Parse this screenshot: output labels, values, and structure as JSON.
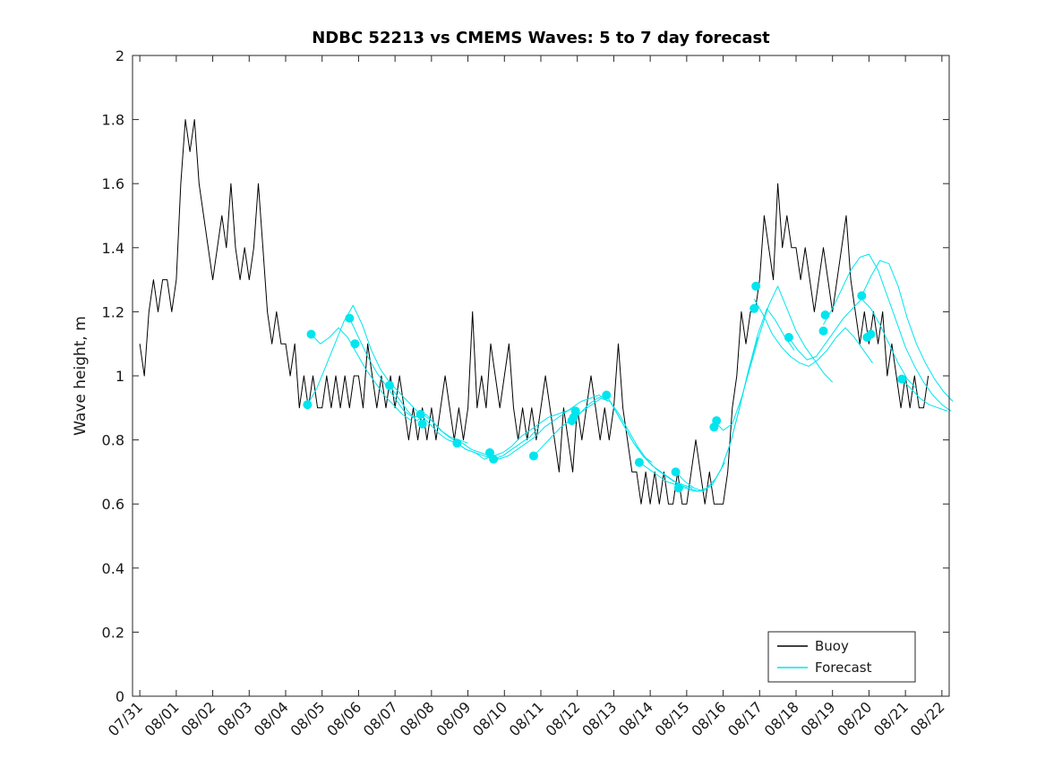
{
  "chart_data": {
    "type": "line",
    "title": "NDBC 52213 vs CMEMS Waves: 5 to 7 day forecast",
    "xlabel": "",
    "ylabel": "Wave height, m",
    "grid": false,
    "x_unit": "days since 07/31",
    "xlim_days": [
      -0.2,
      22.2
    ],
    "ylim": [
      0,
      2
    ],
    "x_axis": {
      "tick_days": [
        0,
        1,
        2,
        3,
        4,
        5,
        6,
        7,
        8,
        9,
        10,
        11,
        12,
        13,
        14,
        15,
        16,
        17,
        18,
        19,
        20,
        21,
        22
      ],
      "tick_labels": [
        "07/31",
        "08/01",
        "08/02",
        "08/03",
        "08/04",
        "08/05",
        "08/06",
        "08/07",
        "08/08",
        "08/09",
        "08/10",
        "08/11",
        "08/12",
        "08/13",
        "08/14",
        "08/15",
        "08/16",
        "08/17",
        "08/18",
        "08/19",
        "08/20",
        "08/21",
        "08/22"
      ],
      "tick_angle_deg": 45
    },
    "y_axis": {
      "tick_values": [
        0,
        0.2,
        0.4,
        0.6,
        0.8,
        1,
        1.2,
        1.4,
        1.6,
        1.8,
        2
      ],
      "tick_labels": [
        "0",
        "0.2",
        "0.4",
        "0.6",
        "0.8",
        "1",
        "1.2",
        "1.4",
        "1.6",
        "1.8",
        "2"
      ]
    },
    "legend": {
      "position": "lower right",
      "entries": [
        {
          "label": "Buoy",
          "color": "#000000"
        },
        {
          "label": "Forecast",
          "color": "#00E5EE"
        }
      ]
    },
    "series": [
      {
        "name": "Buoy",
        "color": "#000000",
        "style": "solid",
        "x_start": 0,
        "x_step": 0.125,
        "values": [
          1.1,
          1.0,
          1.2,
          1.3,
          1.2,
          1.3,
          1.3,
          1.2,
          1.3,
          1.6,
          1.8,
          1.7,
          1.8,
          1.6,
          1.5,
          1.4,
          1.3,
          1.4,
          1.5,
          1.4,
          1.6,
          1.4,
          1.3,
          1.4,
          1.3,
          1.4,
          1.6,
          1.4,
          1.2,
          1.1,
          1.2,
          1.1,
          1.1,
          1.0,
          1.1,
          0.9,
          1.0,
          0.9,
          1.0,
          0.9,
          0.9,
          1.0,
          0.9,
          1.0,
          0.9,
          1.0,
          0.9,
          1.0,
          1.0,
          0.9,
          1.1,
          1.0,
          0.9,
          1.0,
          0.9,
          1.0,
          0.9,
          1.0,
          0.9,
          0.8,
          0.9,
          0.8,
          0.9,
          0.8,
          0.9,
          0.8,
          0.9,
          1.0,
          0.9,
          0.8,
          0.9,
          0.8,
          0.9,
          1.2,
          0.9,
          1.0,
          0.9,
          1.1,
          1.0,
          0.9,
          1.0,
          1.1,
          0.9,
          0.8,
          0.9,
          0.8,
          0.9,
          0.8,
          0.9,
          1.0,
          0.9,
          0.8,
          0.7,
          0.9,
          0.8,
          0.7,
          0.9,
          0.8,
          0.9,
          1.0,
          0.9,
          0.8,
          0.9,
          0.8,
          0.9,
          1.1,
          0.9,
          0.8,
          0.7,
          0.7,
          0.6,
          0.7,
          0.6,
          0.7,
          0.6,
          0.7,
          0.6,
          0.6,
          0.7,
          0.6,
          0.6,
          0.7,
          0.8,
          0.7,
          0.6,
          0.7,
          0.6,
          0.6,
          0.6,
          0.7,
          0.9,
          1.0,
          1.2,
          1.1,
          1.2,
          1.2,
          1.3,
          1.5,
          1.4,
          1.3,
          1.6,
          1.4,
          1.5,
          1.4,
          1.4,
          1.3,
          1.4,
          1.3,
          1.2,
          1.3,
          1.4,
          1.3,
          1.2,
          1.3,
          1.4,
          1.5,
          1.3,
          1.2,
          1.1,
          1.2,
          1.1,
          1.2,
          1.1,
          1.2,
          1.0,
          1.1,
          1.0,
          0.9,
          1.0,
          0.9,
          1.0,
          0.9,
          0.9,
          1.0
        ]
      },
      {
        "name": "Forecast",
        "color": "#00E5EE",
        "style": "solid",
        "segments": [
          {
            "x_start": 4.6,
            "x_step": 0.25,
            "values": [
              0.91,
              0.96,
              1.03,
              1.1,
              1.17,
              1.22,
              1.16,
              1.08,
              1.02,
              0.98,
              0.95,
              0.92,
              0.89
            ]
          },
          {
            "x_start": 4.7,
            "x_step": 0.25,
            "values": [
              1.13,
              1.1,
              1.12,
              1.15,
              1.12,
              1.07,
              1.02,
              0.98,
              0.94,
              0.91,
              0.88,
              0.86
            ]
          },
          {
            "x_start": 5.75,
            "x_step": 0.25,
            "values": [
              1.18,
              1.12,
              1.06,
              1.01,
              0.97,
              0.93,
              0.89,
              0.87,
              0.88,
              0.86,
              0.83,
              0.81,
              0.8,
              0.79
            ]
          },
          {
            "x_start": 6.85,
            "x_step": 0.25,
            "values": [
              0.97,
              0.93,
              0.89,
              0.86,
              0.88,
              0.85,
              0.82,
              0.8,
              0.79,
              0.77,
              0.76,
              0.75,
              0.74
            ]
          },
          {
            "x_start": 7.7,
            "x_step": 0.25,
            "values": [
              0.88,
              0.85,
              0.82,
              0.8,
              0.79,
              0.77,
              0.76,
              0.75,
              0.74,
              0.75,
              0.77,
              0.79,
              0.81,
              0.84
            ]
          },
          {
            "x_start": 8.7,
            "x_step": 0.25,
            "values": [
              0.79,
              0.77,
              0.76,
              0.74,
              0.75,
              0.76,
              0.78,
              0.81,
              0.83,
              0.85,
              0.87,
              0.88,
              0.89,
              0.9
            ]
          },
          {
            "x_start": 9.6,
            "x_step": 0.25,
            "values": [
              0.76,
              0.74,
              0.75,
              0.77,
              0.79,
              0.81,
              0.84,
              0.86,
              0.88,
              0.9,
              0.92,
              0.93,
              0.94,
              0.92
            ]
          },
          {
            "x_start": 10.8,
            "x_step": 0.25,
            "values": [
              0.75,
              0.78,
              0.81,
              0.84,
              0.86,
              0.88,
              0.91,
              0.93,
              0.94,
              0.89,
              0.84,
              0.79,
              0.75,
              0.73
            ]
          },
          {
            "x_start": 11.9,
            "x_step": 0.25,
            "values": [
              0.87,
              0.89,
              0.91,
              0.93,
              0.92,
              0.88,
              0.83,
              0.78,
              0.74,
              0.71,
              0.69,
              0.67,
              0.66,
              0.65
            ]
          },
          {
            "x_start": 12.8,
            "x_step": 0.25,
            "values": [
              0.94,
              0.89,
              0.84,
              0.79,
              0.75,
              0.72,
              0.7,
              0.68,
              0.66,
              0.65,
              0.64,
              0.65,
              0.68,
              0.73
            ]
          },
          {
            "x_start": 13.7,
            "x_step": 0.25,
            "values": [
              0.73,
              0.71,
              0.69,
              0.67,
              0.66,
              0.65,
              0.64,
              0.64,
              0.66,
              0.71,
              0.79,
              0.9,
              1.02,
              1.12
            ]
          },
          {
            "x_start": 14.7,
            "x_step": 0.25,
            "values": [
              0.7,
              0.67,
              0.65,
              0.64,
              0.66,
              0.71,
              0.79,
              0.9,
              1.02,
              1.13,
              1.21,
              1.17,
              1.12,
              1.08
            ]
          },
          {
            "x_start": 15.75,
            "x_step": 0.25,
            "values": [
              0.86,
              0.83,
              0.85,
              0.93,
              1.03,
              1.13,
              1.22,
              1.28,
              1.21,
              1.14,
              1.09,
              1.05,
              1.01,
              0.98
            ]
          },
          {
            "x_start": 16.85,
            "x_step": 0.25,
            "values": [
              1.24,
              1.19,
              1.13,
              1.09,
              1.06,
              1.04,
              1.03,
              1.05,
              1.08,
              1.12,
              1.15,
              1.12,
              1.08,
              1.04
            ]
          },
          {
            "x_start": 17.8,
            "x_step": 0.25,
            "values": [
              1.12,
              1.08,
              1.05,
              1.06,
              1.1,
              1.14,
              1.18,
              1.21,
              1.24,
              1.21,
              1.16,
              1.1,
              1.04,
              0.99,
              0.96
            ]
          },
          {
            "x_start": 18.75,
            "x_step": 0.25,
            "values": [
              1.16,
              1.21,
              1.27,
              1.33,
              1.37,
              1.38,
              1.33,
              1.25,
              1.17,
              1.09,
              1.03,
              0.98,
              0.94,
              0.91,
              0.89
            ]
          },
          {
            "x_start": 19.8,
            "x_step": 0.25,
            "values": [
              1.25,
              1.31,
              1.36,
              1.35,
              1.28,
              1.18,
              1.1,
              1.04,
              0.99,
              0.95,
              0.92
            ]
          },
          {
            "x_start": 20.9,
            "x_step": 0.25,
            "values": [
              0.99,
              0.96,
              0.93,
              0.91,
              0.9,
              0.89
            ]
          }
        ],
        "markers": [
          [
            4.6,
            0.91
          ],
          [
            4.7,
            1.13
          ],
          [
            5.75,
            1.18
          ],
          [
            5.9,
            1.1
          ],
          [
            6.85,
            0.97
          ],
          [
            7.7,
            0.88
          ],
          [
            7.75,
            0.85
          ],
          [
            8.7,
            0.79
          ],
          [
            9.6,
            0.76
          ],
          [
            9.7,
            0.74
          ],
          [
            10.8,
            0.75
          ],
          [
            11.85,
            0.86
          ],
          [
            11.9,
            0.87
          ],
          [
            11.95,
            0.89
          ],
          [
            12.8,
            0.94
          ],
          [
            13.7,
            0.73
          ],
          [
            14.7,
            0.7
          ],
          [
            14.78,
            0.65
          ],
          [
            15.75,
            0.84
          ],
          [
            15.82,
            0.86
          ],
          [
            16.85,
            1.21
          ],
          [
            16.9,
            1.28
          ],
          [
            17.8,
            1.12
          ],
          [
            18.75,
            1.14
          ],
          [
            18.8,
            1.19
          ],
          [
            19.8,
            1.25
          ],
          [
            19.95,
            1.12
          ],
          [
            20.05,
            1.13
          ],
          [
            20.9,
            0.99
          ]
        ]
      }
    ]
  }
}
